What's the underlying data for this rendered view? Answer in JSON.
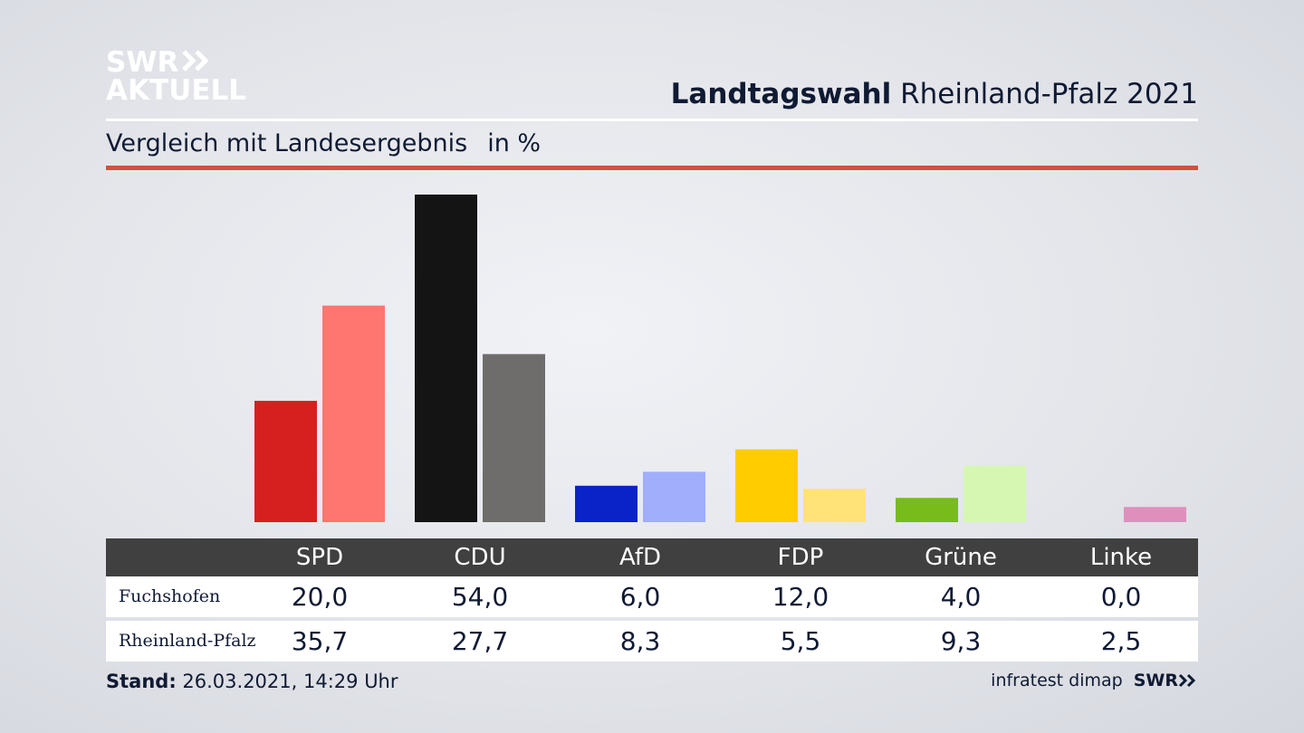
{
  "header": {
    "logo_line1": "SWR",
    "logo_line2": "AKTUELL",
    "title_bold": "Landtagswahl",
    "title_rest": "Rheinland-Pfalz 2021",
    "subtitle": "Vergleich mit Landesergebnis",
    "unit": "in %"
  },
  "chart_data": {
    "type": "bar",
    "title": "",
    "ylim": [
      0,
      54
    ],
    "categories": [
      "SPD",
      "CDU",
      "AfD",
      "FDP",
      "Grüne",
      "Linke"
    ],
    "series": [
      {
        "name": "Fuchshofen",
        "values": [
          20.0,
          54.0,
          6.0,
          12.0,
          4.0,
          0.0
        ],
        "colors": [
          "#d62020",
          "#141414",
          "#0a23c8",
          "#ffcc00",
          "#78bc1b",
          "#e08fbd"
        ]
      },
      {
        "name": "Rheinland-Pfalz",
        "values": [
          35.7,
          27.7,
          8.3,
          5.5,
          9.3,
          2.5
        ],
        "colors": [
          "#ff756f",
          "#6f6d6b",
          "#a0aefc",
          "#ffe278",
          "#d6f7b2",
          "#e08fbd"
        ]
      }
    ],
    "legend": "table-below",
    "grid": false
  },
  "table": {
    "rows": [
      {
        "label": "Fuchshofen",
        "values": [
          "20,0",
          "54,0",
          "6,0",
          "12,0",
          "4,0",
          "0,0"
        ]
      },
      {
        "label": "Rheinland-Pfalz",
        "values": [
          "35,7",
          "27,7",
          "8,3",
          "5,5",
          "9,3",
          "2,5"
        ]
      }
    ]
  },
  "footer": {
    "stand_label": "Stand:",
    "stand_value": "26.03.2021, 14:29 Uhr",
    "source": "infratest dimap",
    "logo": "SWR"
  }
}
